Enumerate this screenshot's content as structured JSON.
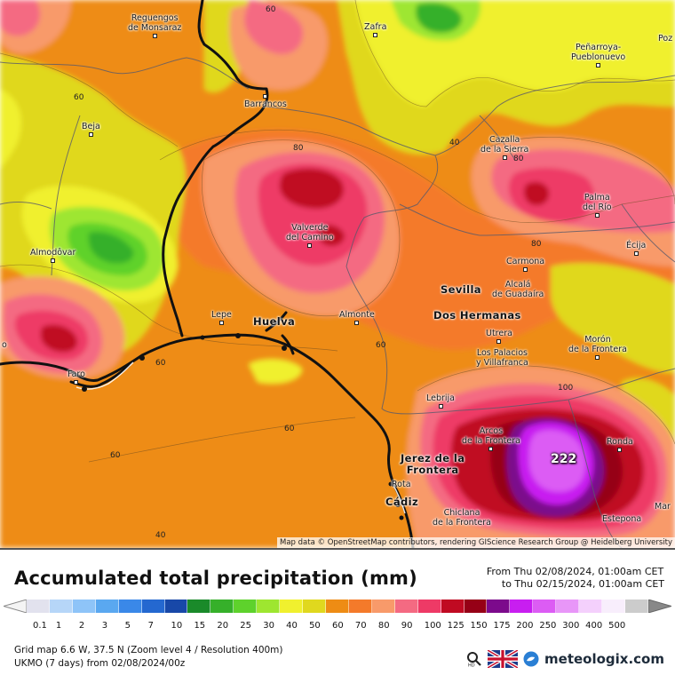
{
  "map": {
    "attribution": "Map data © OpenStreetMap contributors, rendering GIScience Research Group @ Heidelberg University",
    "max_value": "222",
    "cities": [
      {
        "id": "reguengos",
        "lines": [
          "Reguengos",
          "de Monsaraz"
        ],
        "big": false
      },
      {
        "id": "zafra",
        "lines": [
          "Zafra"
        ],
        "big": false
      },
      {
        "id": "penarroya",
        "lines": [
          "Peñarroya-",
          "Pueblonuevo"
        ],
        "big": false
      },
      {
        "id": "barrancos",
        "lines": [
          "Barrancos"
        ],
        "big": false
      },
      {
        "id": "beja",
        "lines": [
          "Beja"
        ],
        "big": false
      },
      {
        "id": "cazalla",
        "lines": [
          "Cazalla",
          "de la Sierra"
        ],
        "big": false
      },
      {
        "id": "palma",
        "lines": [
          "Palma",
          "del Río"
        ],
        "big": false
      },
      {
        "id": "valverde",
        "lines": [
          "Valverde",
          "del Camino"
        ],
        "big": false
      },
      {
        "id": "ecija",
        "lines": [
          "Écija"
        ],
        "big": false
      },
      {
        "id": "almodovar",
        "lines": [
          "Almodôvar"
        ],
        "big": false
      },
      {
        "id": "carmona",
        "lines": [
          "Carmona"
        ],
        "big": false
      },
      {
        "id": "sevilla",
        "lines": [
          "Sevilla"
        ],
        "big": true
      },
      {
        "id": "alcala",
        "lines": [
          "Alcalá",
          "de Guadaíra"
        ],
        "big": false
      },
      {
        "id": "lepe",
        "lines": [
          "Lepe"
        ],
        "big": false
      },
      {
        "id": "huelva",
        "lines": [
          "Huelva"
        ],
        "big": true
      },
      {
        "id": "almonte",
        "lines": [
          "Almonte"
        ],
        "big": false
      },
      {
        "id": "dos",
        "lines": [
          "Dos Hermanas"
        ],
        "big": true
      },
      {
        "id": "utrera",
        "lines": [
          "Utrera"
        ],
        "big": false
      },
      {
        "id": "moron",
        "lines": [
          "Morón",
          "de la Frontera"
        ],
        "big": false
      },
      {
        "id": "palacios",
        "lines": [
          "Los Palacios",
          "y Villafranca"
        ],
        "big": false
      },
      {
        "id": "faro",
        "lines": [
          "Faro"
        ],
        "big": false
      },
      {
        "id": "lebrija",
        "lines": [
          "Lebrija"
        ],
        "big": false
      },
      {
        "id": "arcos",
        "lines": [
          "Arcos",
          "de la Frontera"
        ],
        "big": false
      },
      {
        "id": "ronda",
        "lines": [
          "Ronda"
        ],
        "big": false
      },
      {
        "id": "jerez",
        "lines": [
          "Jerez de la",
          "Frontera"
        ],
        "big": true
      },
      {
        "id": "rota",
        "lines": [
          "Rota"
        ],
        "big": false
      },
      {
        "id": "cadiz",
        "lines": [
          "Cádiz"
        ],
        "big": true
      },
      {
        "id": "chiclana",
        "lines": [
          "Chiclana",
          "de la Frontera"
        ],
        "big": false
      },
      {
        "id": "estepona",
        "lines": [
          "Estepona"
        ],
        "big": false
      },
      {
        "id": "mar",
        "lines": [
          "Mar"
        ],
        "big": false
      },
      {
        "id": "poz",
        "lines": [
          "Poz"
        ],
        "big": false
      },
      {
        "id": "o",
        "lines": [
          "o"
        ],
        "big": false
      }
    ],
    "isolines": [
      "60",
      "60",
      "80",
      "40",
      "80",
      "80",
      "60",
      "60",
      "60",
      "60",
      "100",
      "40"
    ]
  },
  "legend": {
    "title": "Accumulated total precipitation (mm)",
    "range_from": "From Thu 02/08/2024, 01:00am CET",
    "range_to": "to Thu 02/15/2024, 01:00am CET",
    "ticks": [
      "0.1",
      "1",
      "2",
      "3",
      "5",
      "7",
      "10",
      "15",
      "20",
      "25",
      "30",
      "40",
      "50",
      "60",
      "70",
      "80",
      "90",
      "100",
      "125",
      "150",
      "175",
      "200",
      "250",
      "300",
      "400",
      "500"
    ],
    "colors": [
      "#e2e2ee",
      "#b6d6f8",
      "#8ec4f8",
      "#5aa8f0",
      "#3a88e8",
      "#2468d0",
      "#1848a8",
      "#1a8a2a",
      "#36b02a",
      "#5ed22c",
      "#9ee630",
      "#f0f02e",
      "#e0d81e",
      "#ee8c14",
      "#f47a2a",
      "#f89a6a",
      "#f46a82",
      "#ee3a66",
      "#c00a22",
      "#960016",
      "#7c0a8c",
      "#c81ef0",
      "#dc5cf4",
      "#e896f8",
      "#f4d0fc",
      "#f8eefc",
      "#cccccc"
    ],
    "grid_info": "Grid map 6.6 W, 37.5 N (Zoom level 4 / Resolution 400m)",
    "model_info": "UKMO (7 days) from 02/08/2024/00z",
    "brand": "meteologix.com"
  }
}
